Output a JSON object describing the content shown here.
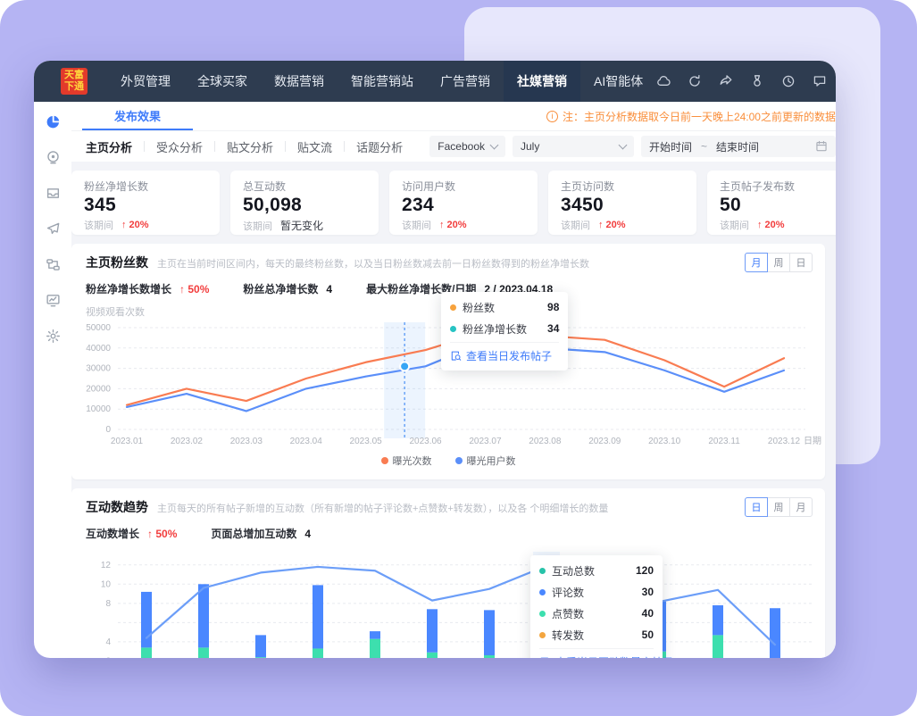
{
  "navbar": {
    "logo_line1": "天富",
    "logo_line2": "下通",
    "menu": [
      {
        "label": "外贸管理",
        "active": false
      },
      {
        "label": "全球买家",
        "active": false
      },
      {
        "label": "数据营销",
        "active": false
      },
      {
        "label": "智能营销站",
        "active": false
      },
      {
        "label": "广告营销",
        "active": false
      },
      {
        "label": "社媒营销",
        "active": true
      },
      {
        "label": "AI智能体",
        "active": false
      }
    ],
    "icons": [
      "cloud-icon",
      "undo-icon",
      "share-icon",
      "medal-icon",
      "clock-icon",
      "chat-icon",
      "bell-icon",
      "more-icon"
    ]
  },
  "sidebar": {
    "icons": [
      {
        "name": "pie-chart-icon",
        "active": true
      },
      {
        "name": "broadcast-icon",
        "active": false
      },
      {
        "name": "inbox-icon",
        "active": false
      },
      {
        "name": "send-icon",
        "active": false
      },
      {
        "name": "workflow-icon",
        "active": false
      },
      {
        "name": "monitor-chart-icon",
        "active": false
      },
      {
        "name": "gear-icon",
        "active": false
      }
    ]
  },
  "tabbar": {
    "active_tab": "发布效果",
    "notice": "注：主页分析数据取今日前一天晚上24:00之前更新的数据"
  },
  "filterbar": {
    "tabs": [
      {
        "label": "主页分析",
        "active": true
      },
      {
        "label": "受众分析",
        "active": false
      },
      {
        "label": "贴文分析",
        "active": false
      },
      {
        "label": "贴文流",
        "active": false
      },
      {
        "label": "话题分析",
        "active": false
      }
    ],
    "platform_value": "Facebook",
    "month_value": "July",
    "date_start": "开始时间",
    "date_sep": "~",
    "date_end": "结束时间"
  },
  "stat_cards": [
    {
      "label": "粉丝净增长数",
      "value": "345",
      "period": "该期间",
      "change": "20%",
      "trend": "up"
    },
    {
      "label": "总互动数",
      "value": "50,098",
      "period": "该期间",
      "change": "暂无变化",
      "trend": "none"
    },
    {
      "label": "访问用户数",
      "value": "234",
      "period": "该期间",
      "change": "20%",
      "trend": "up"
    },
    {
      "label": "主页访问数",
      "value": "3450",
      "period": "该期间",
      "change": "20%",
      "trend": "up"
    },
    {
      "label": "主页帖子发布数",
      "value": "50",
      "period": "该期间",
      "change": "20%",
      "trend": "up"
    }
  ],
  "fans_panel": {
    "title": "主页粉丝数",
    "desc": "主页在当前时间区间内，每天的最终粉丝数，以及当日粉丝数减去前一日粉丝数得到的粉丝净增长数",
    "toggle": [
      "月",
      "周",
      "日"
    ],
    "toggle_active": 0,
    "stats": [
      {
        "label": "粉丝净增长数增长",
        "value": "50%",
        "trend": "up"
      },
      {
        "label": "粉丝总净增长数",
        "value": "4",
        "trend": "none"
      },
      {
        "label": "最大粉丝净增长数/日期",
        "value": "2 / 2023.04.18",
        "trend": "none"
      }
    ],
    "y_title": "视频观看次数",
    "tooltip": {
      "rows": [
        {
          "label": "粉丝数",
          "value": "98",
          "color": "#f7a23c"
        },
        {
          "label": "粉丝净增长数",
          "value": "34",
          "color": "#27c3c3"
        }
      ],
      "link": "查看当日发布帖子"
    }
  },
  "engagement_panel": {
    "title": "互动数趋势",
    "desc": "主页每天的所有帖子新增的互动数（所有新增的帖子评论数+点赞数+转发数），以及各 个明细增长的数量",
    "toggle": [
      "日",
      "周",
      "月"
    ],
    "toggle_active": 0,
    "stats": [
      {
        "label": "互动数增长",
        "value": "50%",
        "trend": "up"
      },
      {
        "label": "页面总增加互动数",
        "value": "4",
        "trend": "none"
      }
    ],
    "tooltip": {
      "rows": [
        {
          "label": "互动总数",
          "value": "120",
          "color": "#27c3a9"
        },
        {
          "label": "评论数",
          "value": "30",
          "color": "#4a87ff"
        },
        {
          "label": "点赞数",
          "value": "40",
          "color": "#3ddfae"
        },
        {
          "label": "转发数",
          "value": "50",
          "color": "#f3a53f"
        }
      ],
      "link": "查看当日互动数最高帖子"
    }
  },
  "chart_data": [
    {
      "type": "line",
      "title": "主页粉丝数",
      "x": [
        "2023.01",
        "2023.02",
        "2023.03",
        "2023.04",
        "2023.05",
        "2023.06",
        "2023.07",
        "2023.08",
        "2023.09",
        "2023.10",
        "2023.11",
        "2023.12"
      ],
      "x_axis_label": "日期",
      "ylim": [
        0,
        50000
      ],
      "y_ticks": [
        0,
        10000,
        20000,
        30000,
        40000,
        50000
      ],
      "grid": true,
      "legend_position": "bottom",
      "series": [
        {
          "name": "曝光次数",
          "color": "#f97c52",
          "values": [
            12000,
            20000,
            14000,
            25000,
            33000,
            39000,
            48000,
            46000,
            44000,
            34000,
            21000,
            35000
          ]
        },
        {
          "name": "曝光用户数",
          "color": "#5b8ff9",
          "values": [
            11000,
            17500,
            9000,
            20000,
            26000,
            31000,
            43000,
            40000,
            38000,
            29000,
            18500,
            29000
          ]
        }
      ],
      "highlight": {
        "x_frac": 4.65,
        "marker_value": 31000,
        "marker_color": "#38a6f5",
        "band_color": "rgba(64,144,247,0.10)"
      }
    },
    {
      "type": "bar",
      "title": "互动数趋势",
      "stacked": true,
      "ylim": [
        0,
        13
      ],
      "y_ticks": [
        2,
        4,
        8,
        10,
        12
      ],
      "grid_levels": [
        2,
        4,
        6,
        8,
        10,
        12
      ],
      "series": [
        {
          "name": "转发数",
          "kind": "bar",
          "color": "#f3a53f",
          "values": [
            2.2,
            0,
            1.3,
            1.1,
            2.0,
            0,
            1.6,
            3.7,
            0,
            1.4,
            1.9,
            0
          ]
        },
        {
          "name": "点赞数",
          "kind": "bar",
          "color": "#3ddfae",
          "values": [
            1.2,
            3.4,
            1.1,
            2.2,
            2.3,
            2.9,
            1.0,
            4.6,
            3.5,
            1.6,
            2.8,
            1.5
          ]
        },
        {
          "name": "评论数",
          "kind": "bar",
          "color": "#4a87ff",
          "values": [
            5.8,
            6.6,
            2.3,
            6.6,
            0.8,
            4.5,
            4.7,
            2.7,
            5.2,
            5.2,
            3.1,
            6.0
          ]
        },
        {
          "name": "互动总数",
          "kind": "line",
          "color": "#6c9ef8",
          "values": [
            4.4,
            9.6,
            11.2,
            11.8,
            11.4,
            8.3,
            9.5,
            11.9,
            10.6,
            8.2,
            9.4,
            3.7
          ]
        }
      ],
      "highlight_index": 7,
      "highlight_band_color": "rgba(64,144,247,0.08)"
    }
  ]
}
